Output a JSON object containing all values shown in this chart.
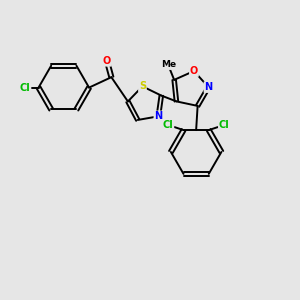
{
  "bg_color": "#e6e6e6",
  "bond_color": "#000000",
  "bond_width": 1.4,
  "atom_colors": {
    "S": "#cccc00",
    "N": "#0000ff",
    "O": "#ff0000",
    "Cl": "#00bb00",
    "C": "#000000"
  },
  "font_size": 7.0
}
